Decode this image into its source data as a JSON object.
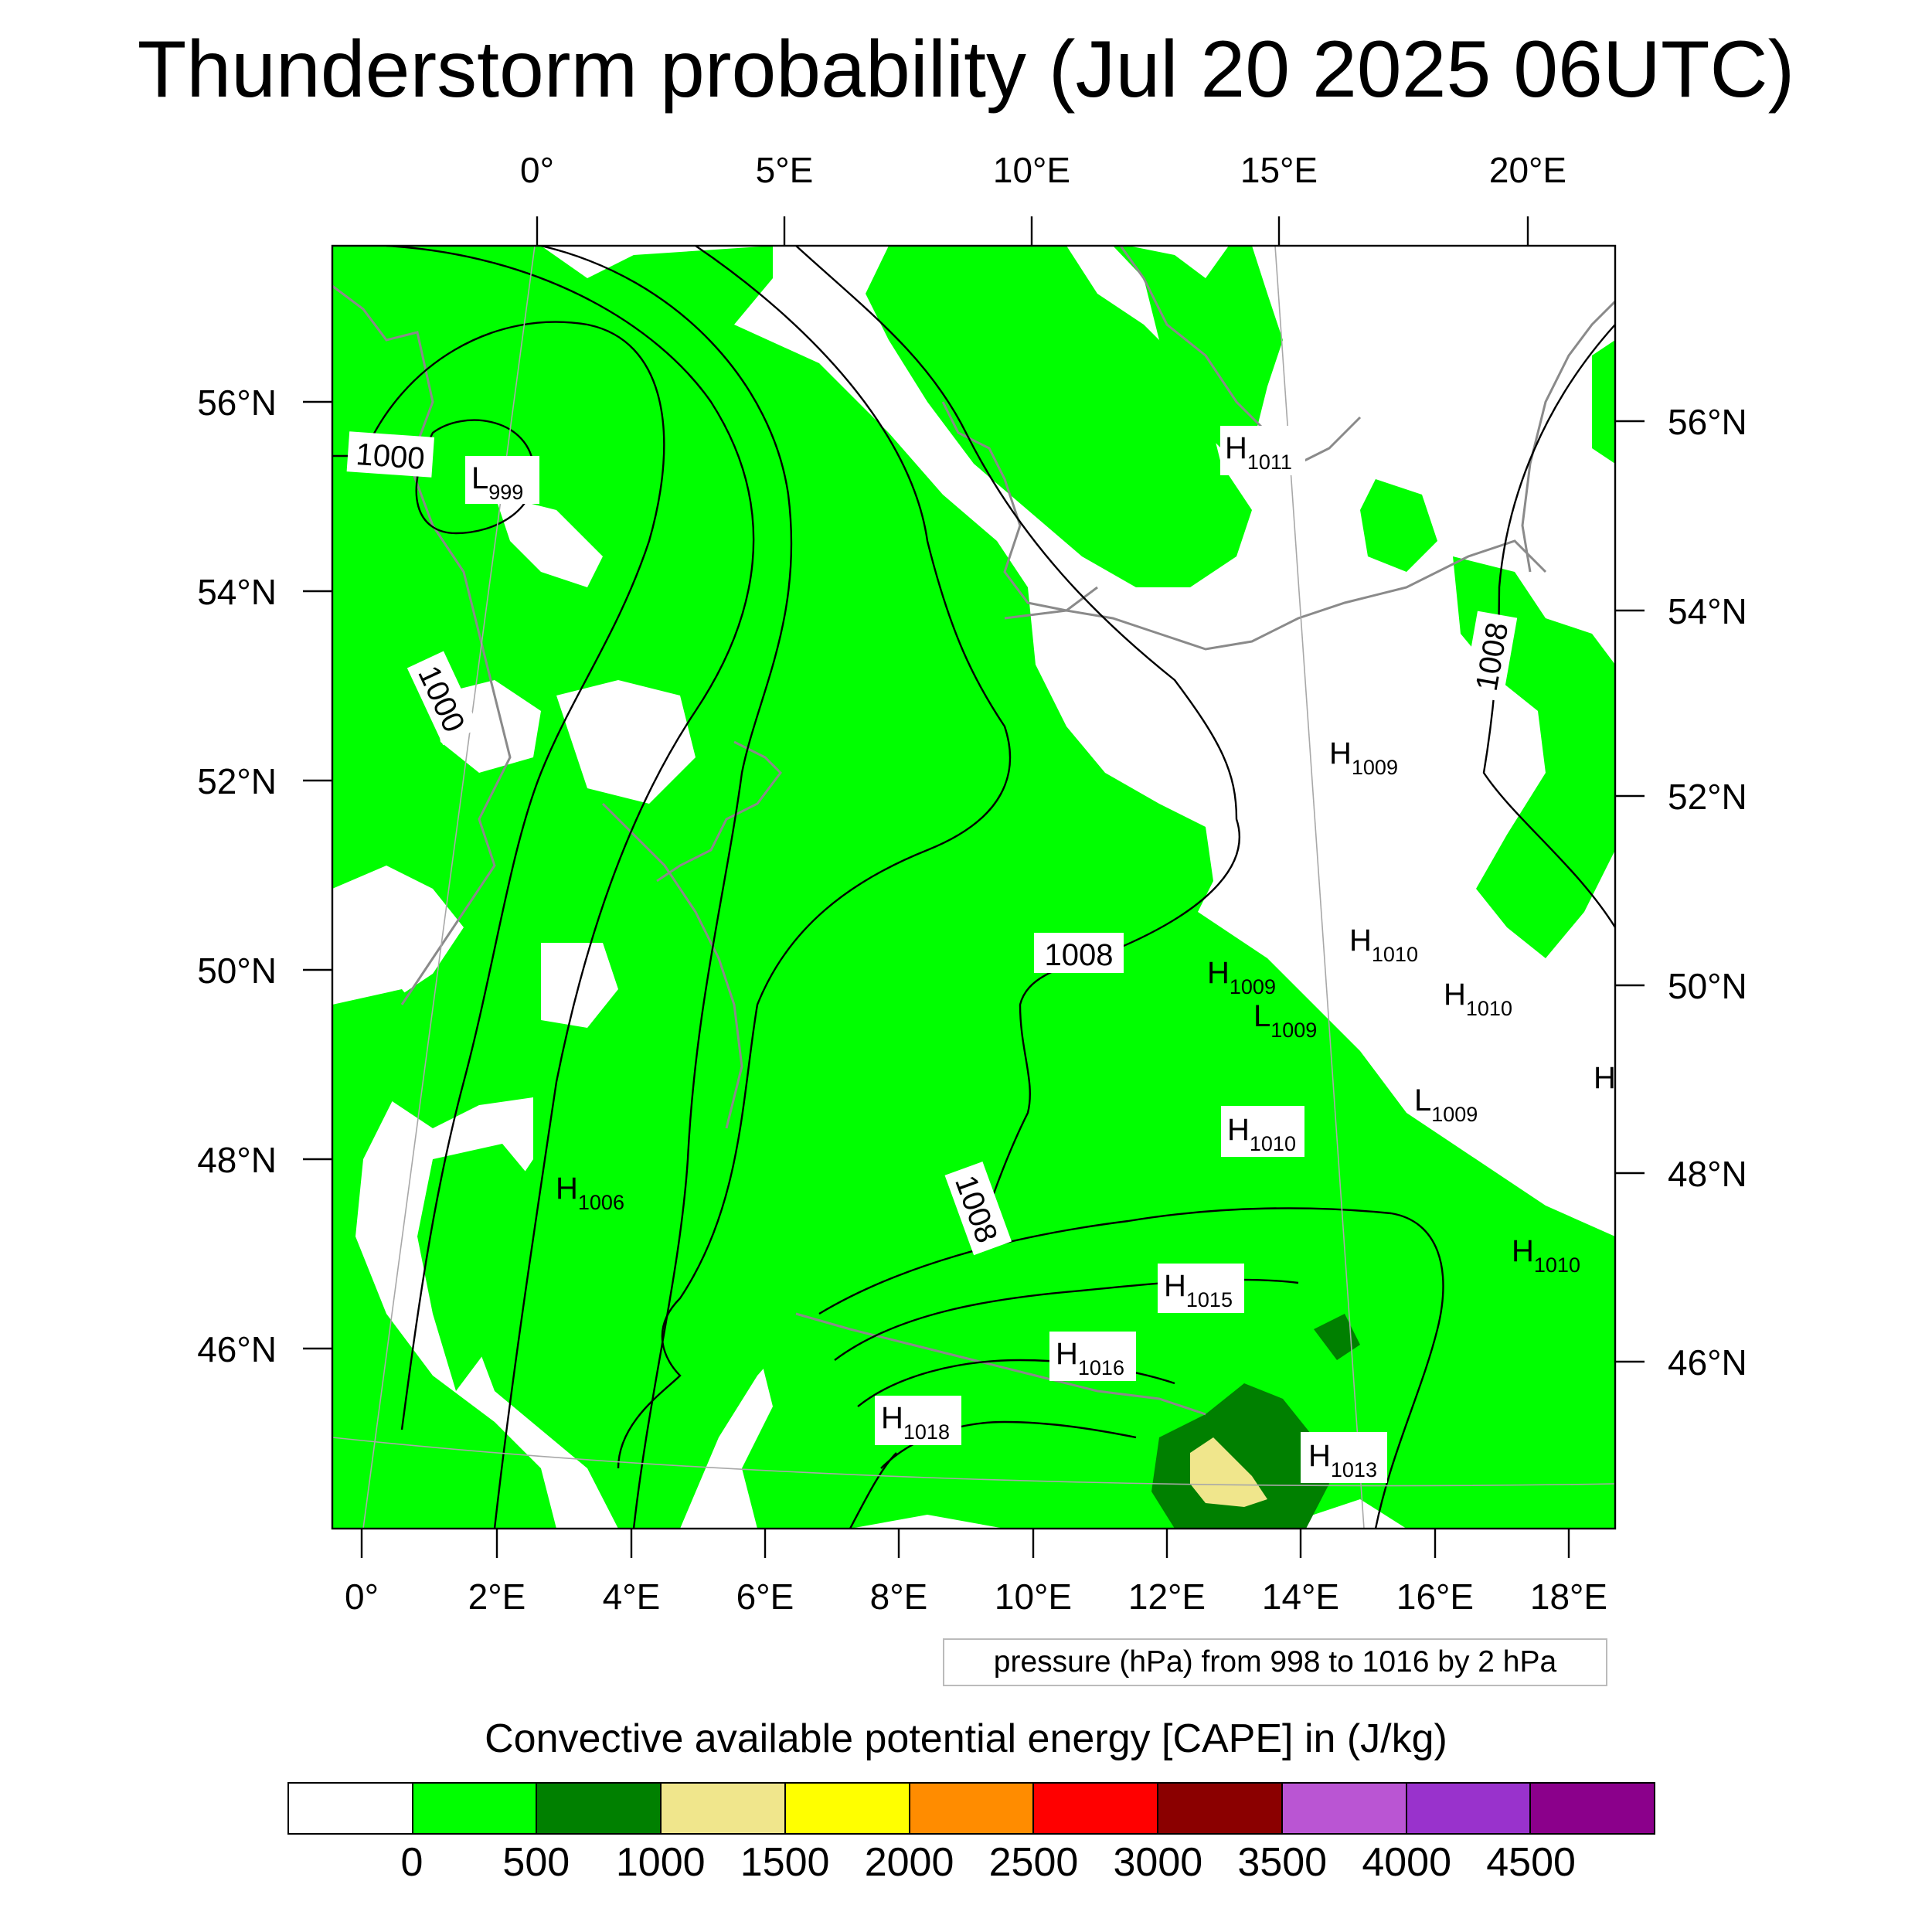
{
  "title": "Thunderstorm probability (Jul 20 2025 06UTC)",
  "colors": {
    "land_outline": "#8a8a8a",
    "contour": "#000000",
    "cape_0_500": "#00ff00",
    "cape_500_1000": "#008000",
    "cape_1000_1500": "#f0e68c"
  },
  "top_lon_labels": [
    "0°",
    "5°E",
    "10°E",
    "15°E",
    "20°E"
  ],
  "bottom_lon_labels": [
    "0°",
    "2°E",
    "4°E",
    "6°E",
    "8°E",
    "10°E",
    "12°E",
    "14°E",
    "16°E",
    "18°E"
  ],
  "left_lat_labels": [
    "56°N",
    "54°N",
    "52°N",
    "50°N",
    "48°N",
    "46°N"
  ],
  "right_lat_labels": [
    "56°N",
    "54°N",
    "52°N",
    "50°N",
    "48°N",
    "46°N"
  ],
  "contour_labels": [
    "1000",
    "1000",
    "1008",
    "1008",
    "1008"
  ],
  "pressure_centers": [
    {
      "type": "L",
      "value": "999"
    },
    {
      "type": "H",
      "value": "1011"
    },
    {
      "type": "H",
      "value": "1009"
    },
    {
      "type": "H",
      "value": "1010"
    },
    {
      "type": "H",
      "value": "1010"
    },
    {
      "type": "H",
      "value": "1009"
    },
    {
      "type": "L",
      "value": "1009"
    },
    {
      "type": "L",
      "value": "1009"
    },
    {
      "type": "H",
      "value": "1010"
    },
    {
      "type": "H",
      "value": "1006"
    },
    {
      "type": "H",
      "value": "1015"
    },
    {
      "type": "H",
      "value": "1016"
    },
    {
      "type": "H",
      "value": "1018"
    },
    {
      "type": "H",
      "value": "1013"
    },
    {
      "type": "H",
      "value": "1010"
    },
    {
      "type": "H",
      "value": ""
    }
  ],
  "pressure_note": "pressure (hPa) from 998 to 1016 by 2 hPa",
  "colorbar": {
    "title": "Convective available potential energy [CAPE] in (J/kg)",
    "labels": [
      "0",
      "500",
      "1000",
      "1500",
      "2000",
      "2500",
      "3000",
      "3500",
      "4000",
      "4500"
    ],
    "colors": [
      "#ffffff",
      "#00ff00",
      "#008000",
      "#f0e68c",
      "#ffff00",
      "#ff8c00",
      "#ff0000",
      "#8b0000",
      "#ba55d3",
      "#9932cc",
      "#8b008b"
    ]
  }
}
